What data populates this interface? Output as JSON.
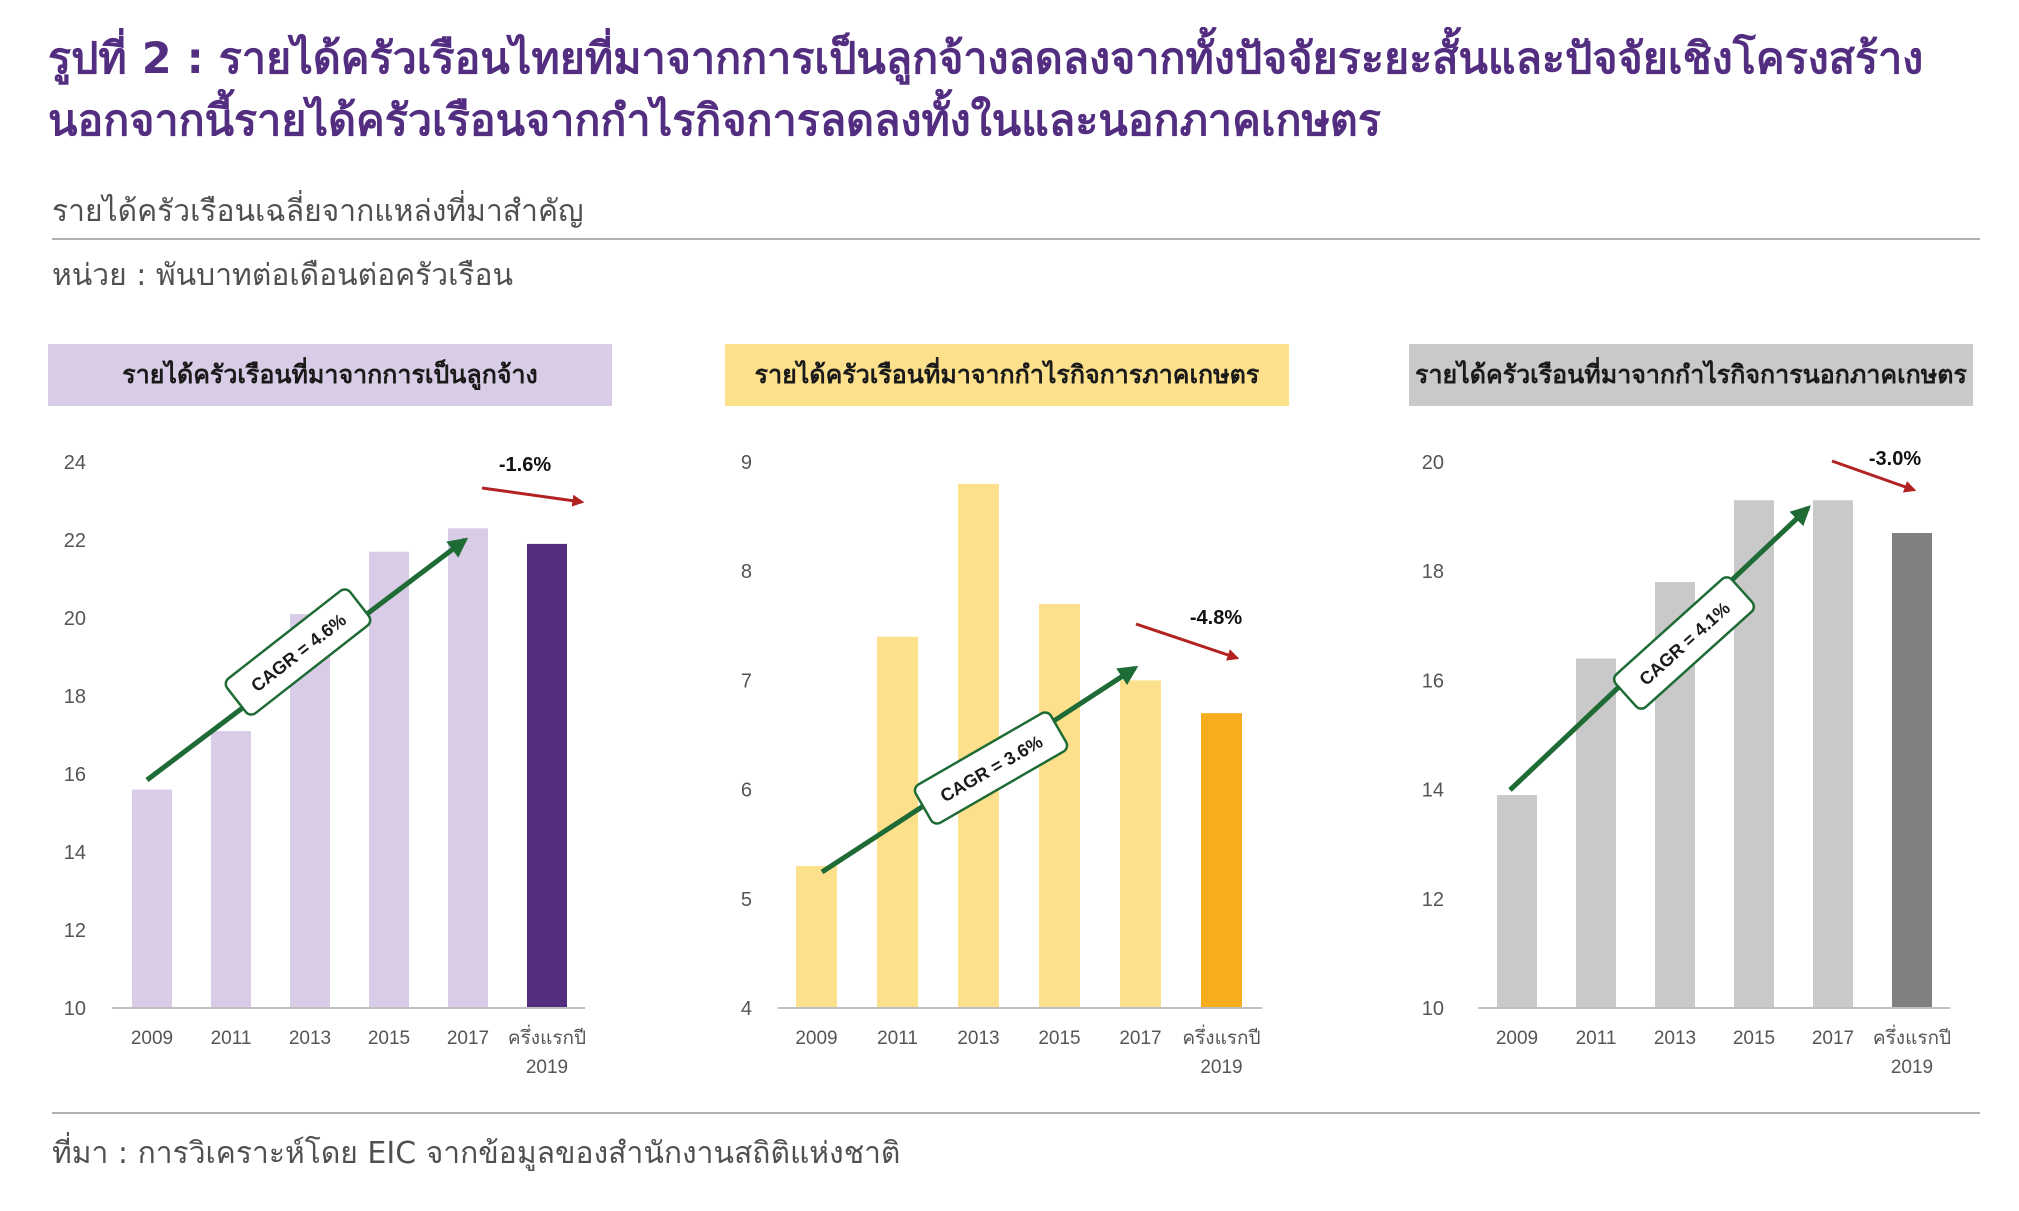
{
  "title": "รูปที่ 2 : รายได้ครัวเรือนไทยที่มาจากการเป็นลูกจ้างลดลงจากทั้งปัจจัยระยะสั้นและปัจจัยเชิงโครงสร้าง นอกจากนี้รายได้ครัวเรือนจากกำไรกิจการลดลงทั้งในและนอกภาคเกษตร",
  "subtitle": "รายได้ครัวเรือนเฉลี่ยจากแหล่งที่มาสำคัญ",
  "unit": "หน่วย : พันบาทต่อเดือนต่อครัวเรือน",
  "source": "ที่มา : การวิเคราะห์โดย EIC จากข้อมูลของสำนักงานสถิติแห่งชาติ",
  "colors": {
    "title": "#522D80",
    "trend_arrow": "#1E6B35",
    "decline_arrow": "#B22222"
  },
  "chart_data": [
    {
      "type": "bar",
      "title": "รายได้ครัวเรือนที่มาจากการเป็นลูกจ้าง",
      "header_color": "#D9CCE6",
      "bar_color": "#D9CCE6",
      "highlight_color": "#522D80",
      "categories": [
        "2009",
        "2011",
        "2013",
        "2015",
        "2017",
        "ครึ่งแรกปี 2019"
      ],
      "values": [
        15.6,
        17.1,
        20.1,
        21.7,
        22.3,
        21.9
      ],
      "ylim": [
        10,
        24
      ],
      "yticks": [
        10,
        12,
        14,
        16,
        18,
        20,
        22,
        24
      ],
      "cagr_label": "CAGR = 4.6%",
      "change_label": "-1.6%"
    },
    {
      "type": "bar",
      "title": "รายได้ครัวเรือนที่มาจากกำไรกิจการภาคเกษตร",
      "header_color": "#FDE08B",
      "bar_color": "#FDE08B",
      "highlight_color": "#F8AD1E",
      "categories": [
        "2009",
        "2011",
        "2013",
        "2015",
        "2017",
        "ครึ่งแรกปี 2019"
      ],
      "values": [
        5.3,
        7.4,
        8.8,
        7.7,
        7.0,
        6.7
      ],
      "ylim": [
        4,
        9
      ],
      "yticks": [
        4,
        5,
        6,
        7,
        8,
        9
      ],
      "cagr_label": "CAGR = 3.6%",
      "change_label": "-4.8%"
    },
    {
      "type": "bar",
      "title": "รายได้ครัวเรือนที่มาจากกำไรกิจการนอกภาคเกษตร",
      "header_color": "#C9C9C9",
      "bar_color": "#C9C9C9",
      "highlight_color": "#808080",
      "categories": [
        "2009",
        "2011",
        "2013",
        "2015",
        "2017",
        "ครึ่งแรกปี 2019"
      ],
      "values": [
        13.9,
        16.4,
        17.8,
        19.3,
        19.3,
        18.7
      ],
      "ylim": [
        10,
        20
      ],
      "yticks": [
        10,
        12,
        14,
        16,
        18,
        20
      ],
      "cagr_label": "CAGR = 4.1%",
      "change_label": "-3.0%"
    }
  ]
}
